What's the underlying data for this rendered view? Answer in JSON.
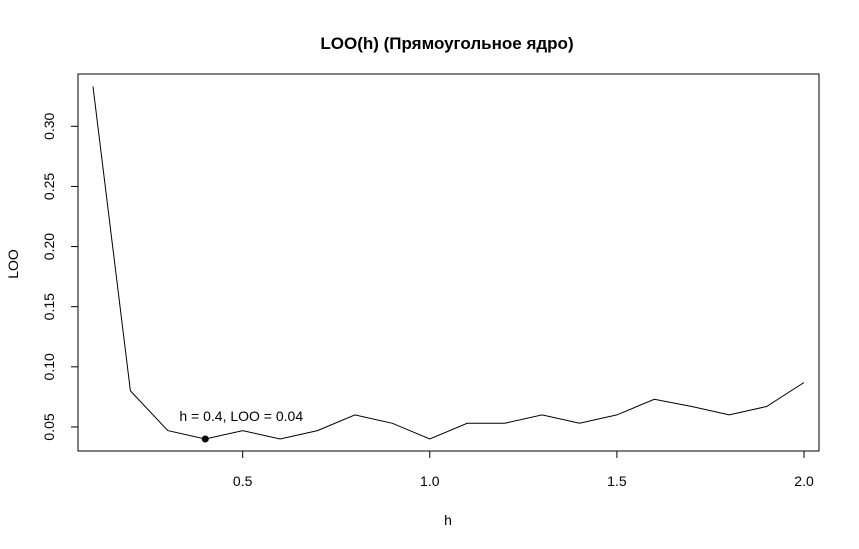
{
  "chart_data": {
    "type": "line",
    "title": "LOO(h) (Прямоугольное ядро)",
    "xlabel": "h",
    "ylabel": "LOO",
    "xlim": [
      0.06,
      2.04
    ],
    "ylim": [
      0.03,
      0.3435
    ],
    "x_ticks": [
      0.5,
      1.0,
      1.5,
      2.0
    ],
    "x_tick_labels": [
      "0.5",
      "1.0",
      "1.5",
      "2.0"
    ],
    "y_ticks": [
      0.05,
      0.1,
      0.15,
      0.2,
      0.25,
      0.3
    ],
    "y_tick_labels": [
      "0.05",
      "0.10",
      "0.15",
      "0.20",
      "0.25",
      "0.30"
    ],
    "grid": false,
    "x": [
      0.1,
      0.2,
      0.3,
      0.4,
      0.5,
      0.6,
      0.7,
      0.8,
      0.9,
      1.0,
      1.1,
      1.2,
      1.3,
      1.4,
      1.5,
      1.6,
      1.7,
      1.8,
      1.9,
      2.0
    ],
    "y": [
      0.333,
      0.08,
      0.047,
      0.04,
      0.047,
      0.04,
      0.047,
      0.06,
      0.053,
      0.04,
      0.053,
      0.053,
      0.06,
      0.053,
      0.06,
      0.073,
      0.067,
      0.06,
      0.067,
      0.087
    ],
    "highlight": {
      "x": 0.4,
      "y": 0.04,
      "label": "h = 0.4, LOO = 0.04"
    }
  }
}
